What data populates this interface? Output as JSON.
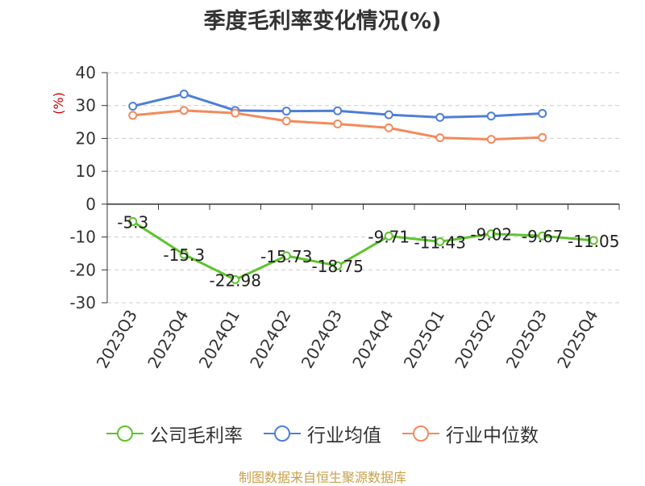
{
  "chart_data": {
    "type": "line",
    "title": "季度毛利率变化情况(%)",
    "ylabel": "(%)",
    "categories": [
      "2023Q3",
      "2023Q4",
      "2024Q1",
      "2024Q2",
      "2024Q3",
      "2024Q4",
      "2025Q1",
      "2025Q2",
      "2025Q3",
      "2025Q4"
    ],
    "ylim": [
      -30,
      40
    ],
    "yticks": [
      40,
      30,
      20,
      10,
      0,
      -10,
      -20,
      -30
    ],
    "grid": true,
    "legend_position": "bottom",
    "series": [
      {
        "name": "公司毛利率",
        "color": "#5ec42d",
        "values": [
          -5.3,
          -15.3,
          -22.98,
          -15.73,
          -18.75,
          -9.71,
          -11.43,
          -9.02,
          -9.67,
          -11.05
        ],
        "labels": [
          "-5.3",
          "-15.3",
          "-22.98",
          "-15.73",
          "-18.75",
          "-9.71",
          "-11.43",
          "-9.02",
          "-9.67",
          "-11.05"
        ]
      },
      {
        "name": "行业均值",
        "color": "#4f7fd6",
        "values": [
          29.8,
          33.5,
          28.5,
          28.3,
          28.4,
          27.2,
          26.4,
          26.8,
          27.6,
          null
        ]
      },
      {
        "name": "行业中位数",
        "color": "#f38a5c",
        "values": [
          27.0,
          28.5,
          27.7,
          25.3,
          24.4,
          23.2,
          20.2,
          19.7,
          20.3,
          null
        ]
      }
    ]
  },
  "footer": {
    "source": "制图数据来自恒生聚源数据库"
  }
}
